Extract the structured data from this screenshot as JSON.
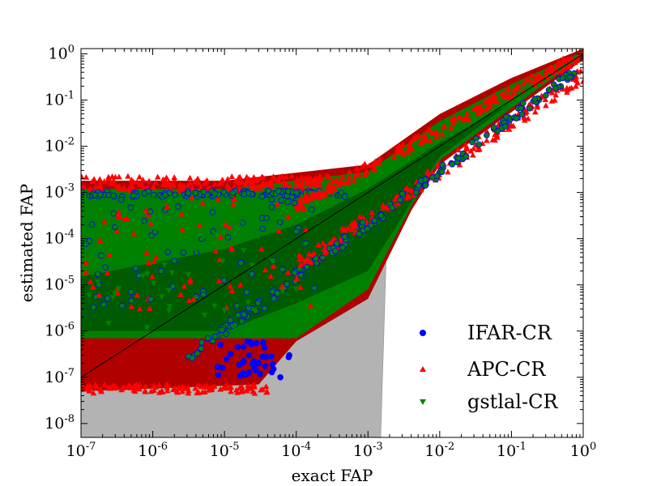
{
  "chart_data": {
    "type": "scatter",
    "xlabel": "exact FAP",
    "ylabel": "estimated FAP",
    "xscale": "log",
    "yscale": "log",
    "xlim": [
      1e-07,
      1
    ],
    "ylim": [
      5e-09,
      1.3
    ],
    "x_ticks": [
      {
        "base": "10",
        "exp": "-7"
      },
      {
        "base": "10",
        "exp": "-6"
      },
      {
        "base": "10",
        "exp": "-5"
      },
      {
        "base": "10",
        "exp": "-4"
      },
      {
        "base": "10",
        "exp": "-3"
      },
      {
        "base": "10",
        "exp": "-2"
      },
      {
        "base": "10",
        "exp": "-1"
      },
      {
        "base": "10",
        "exp": "0"
      }
    ],
    "y_ticks": [
      {
        "base": "10",
        "exp": "-8"
      },
      {
        "base": "10",
        "exp": "-7"
      },
      {
        "base": "10",
        "exp": "-6"
      },
      {
        "base": "10",
        "exp": "-5"
      },
      {
        "base": "10",
        "exp": "-4"
      },
      {
        "base": "10",
        "exp": "-3"
      },
      {
        "base": "10",
        "exp": "-2"
      },
      {
        "base": "10",
        "exp": "-1"
      },
      {
        "base": "10",
        "exp": "0"
      }
    ],
    "legend_position": "bottom-right",
    "series": [
      {
        "name": "IFAR-CR",
        "marker": "circle",
        "color": "#0000ff"
      },
      {
        "name": "APC-CR",
        "marker": "triangle-up",
        "color": "#ff0000"
      },
      {
        "name": "gstlal-CR",
        "marker": "triangle-down",
        "color": "#008000"
      }
    ],
    "reference_line": {
      "x": [
        1e-07,
        1
      ],
      "y": [
        1e-07,
        1
      ],
      "color": "#000000"
    },
    "band_color": "#b3b3b3",
    "region_colors": {
      "red": "#b00000",
      "green_dark": "#005a00",
      "green": "#008000"
    }
  }
}
